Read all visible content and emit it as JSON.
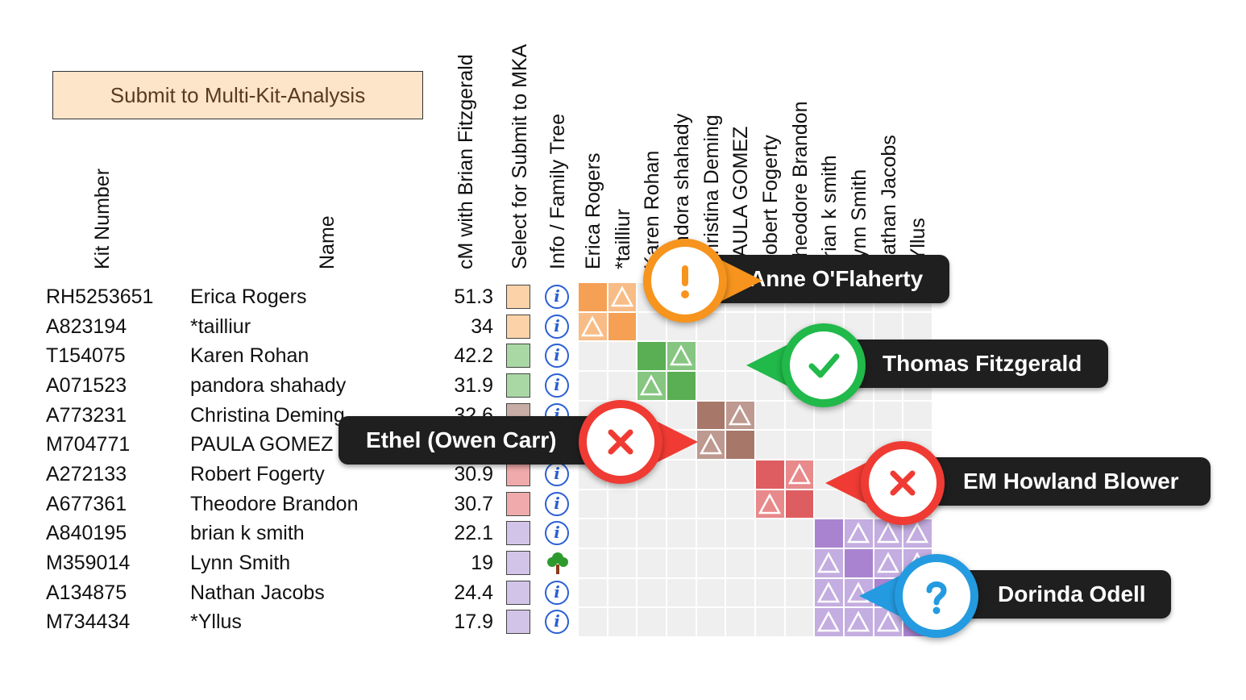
{
  "submit_button_label": "Submit to Multi-Kit-Analysis",
  "headers": {
    "kit": "Kit Number",
    "name": "Name",
    "cm": "cM with Brian Fitzgerald",
    "select": "Select for Submit to MKA",
    "info": "Info / Family Tree"
  },
  "rows": [
    {
      "kit": "RH5253651",
      "name": "Erica Rogers",
      "cm": "51.3",
      "color": "#fcd2a8",
      "icon": "info"
    },
    {
      "kit": "A823194",
      "name": "*tailliur",
      "cm": "34",
      "color": "#fcd2a8",
      "icon": "info"
    },
    {
      "kit": "T154075",
      "name": "Karen Rohan",
      "cm": "42.2",
      "color": "#a9d8a4",
      "icon": "info"
    },
    {
      "kit": "A071523",
      "name": "pandora shahady",
      "cm": "31.9",
      "color": "#a9d8a4",
      "icon": "info"
    },
    {
      "kit": "A773231",
      "name": "Christina Deming",
      "cm": "32.6",
      "color": "#c8ada6",
      "icon": "info"
    },
    {
      "kit": "M704771",
      "name": "PAULA GOMEZ",
      "cm": "",
      "color": "#c8ada6",
      "icon": "info"
    },
    {
      "kit": "A272133",
      "name": "Robert Fogerty",
      "cm": "30.9",
      "color": "#f0aaab",
      "icon": "info"
    },
    {
      "kit": "A677361",
      "name": "Theodore Brandon",
      "cm": "30.7",
      "color": "#f0aaab",
      "icon": "info"
    },
    {
      "kit": "A840195",
      "name": "brian k smith",
      "cm": "22.1",
      "color": "#d2c4e8",
      "icon": "info"
    },
    {
      "kit": "M359014",
      "name": "Lynn Smith",
      "cm": "19",
      "color": "#d2c4e8",
      "icon": "tree"
    },
    {
      "kit": "A134875",
      "name": "Nathan Jacobs",
      "cm": "24.4",
      "color": "#d2c4e8",
      "icon": "info"
    },
    {
      "kit": "M734434",
      "name": "*Yllus",
      "cm": "17.9",
      "color": "#d2c4e8",
      "icon": "info"
    }
  ],
  "matrix_headers": [
    "Erica Rogers",
    "*tailliur",
    "Karen Rohan",
    "pandora shahady",
    "Christina Deming",
    "PAULA GOMEZ",
    "Robert Fogerty",
    "Theodore Brandon",
    "brian k smith",
    "Lynn Smith",
    "Nathan Jacobs",
    "*Yllus"
  ],
  "clusters": [
    {
      "rows": [
        0,
        1
      ],
      "color": "#f5a055",
      "light": "#f8bc86"
    },
    {
      "rows": [
        2,
        3
      ],
      "color": "#5aae53",
      "light": "#86c681"
    },
    {
      "rows": [
        4,
        5
      ],
      "color": "#a7776a",
      "light": "#be9990"
    },
    {
      "rows": [
        6,
        7
      ],
      "color": "#de5d60",
      "light": "#e8898b"
    },
    {
      "rows": [
        8,
        9,
        10,
        11
      ],
      "color": "#a983cf",
      "light": "#c4ade0"
    }
  ],
  "callouts": [
    {
      "name": "Anne O'Flaherty",
      "type": "warning",
      "icon": "exclamation-icon",
      "color": "#f6941e"
    },
    {
      "name": "Thomas Fitzgerald",
      "type": "check",
      "icon": "checkmark-icon",
      "color": "#21b94a"
    },
    {
      "name": "Ethel (Owen Carr)",
      "type": "cross",
      "icon": "close-icon",
      "color": "#ef3b33"
    },
    {
      "name": "EM Howland Blower",
      "type": "cross",
      "icon": "close-icon",
      "color": "#ef3b33"
    },
    {
      "name": "Dorinda Odell",
      "type": "question",
      "icon": "question-icon",
      "color": "#249be0"
    }
  ]
}
